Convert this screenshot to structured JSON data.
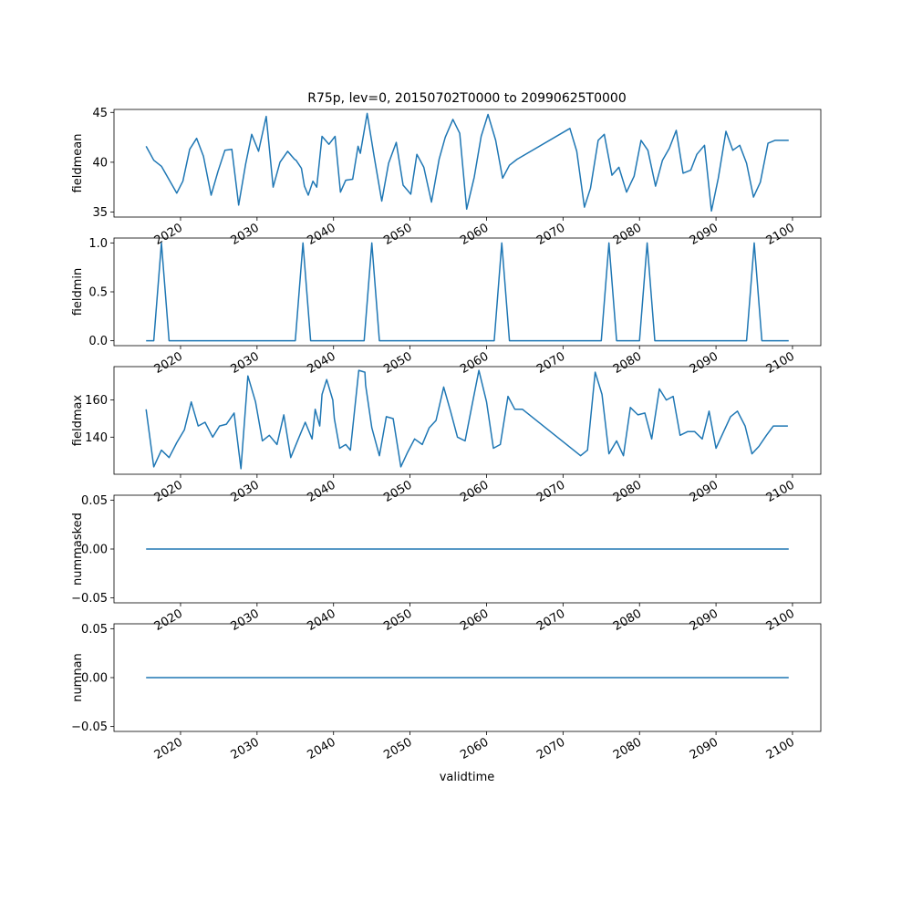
{
  "figure_title": "R75p, lev=0, 20150702T0000 to 20990625T0000",
  "xlabel": "validtime",
  "x_ticks": [
    2020,
    2030,
    2040,
    2050,
    2060,
    2070,
    2080,
    2090,
    2100
  ],
  "line_color": "#1f77b4",
  "chart_data": [
    {
      "type": "line",
      "ylabel": "fieldmean",
      "ylim": [
        34.5,
        45.3
      ],
      "yticks": [
        "35",
        "40",
        "45"
      ],
      "ytick_values": [
        35,
        40,
        45
      ],
      "x": [
        2015.5,
        2016.5,
        2017.5,
        2019.5,
        2020.3,
        2021.2,
        2022.1,
        2023.0,
        2024.0,
        2024.9,
        2025.8,
        2026.7,
        2027.6,
        2028.5,
        2029.3,
        2030.2,
        2031.2,
        2032.1,
        2033.0,
        2034.0,
        2034.9,
        2035.1,
        2035.8,
        2036.2,
        2036.7,
        2037.3,
        2037.8,
        2038.5,
        2039.4,
        2040.2,
        2040.9,
        2041.6,
        2042.5,
        2043.2,
        2043.5,
        2044.4,
        2045.3,
        2046.3,
        2047.2,
        2048.2,
        2049.1,
        2050.1,
        2050.9,
        2051.8,
        2052.8,
        2053.8,
        2054.6,
        2055.6,
        2056.5,
        2057.4,
        2058.4,
        2059.3,
        2060.2,
        2061.2,
        2062.1,
        2063.0,
        2064.0,
        2070.9,
        2071.8,
        2072.8,
        2073.6,
        2074.6,
        2075.4,
        2076.4,
        2077.3,
        2078.3,
        2079.3,
        2080.2,
        2081.1,
        2082.1,
        2083.0,
        2083.9,
        2084.8,
        2085.7,
        2086.7,
        2087.5,
        2088.5,
        2089.4,
        2090.3,
        2091.3,
        2092.2,
        2093.1,
        2094.0,
        2094.9,
        2095.8,
        2096.8,
        2097.7,
        2098.6,
        2099.5
      ],
      "y": [
        41.6,
        40.2,
        39.6,
        36.9,
        38.1,
        41.3,
        42.4,
        40.6,
        36.7,
        39.1,
        41.2,
        41.3,
        35.7,
        39.8,
        42.8,
        41.1,
        44.6,
        37.5,
        40.0,
        41.1,
        40.3,
        40.2,
        39.4,
        37.6,
        36.7,
        38.1,
        37.5,
        42.6,
        41.8,
        42.6,
        37.0,
        38.2,
        38.3,
        41.6,
        40.9,
        44.9,
        40.6,
        36.1,
        39.9,
        42.0,
        37.7,
        36.8,
        40.8,
        39.5,
        36.0,
        40.3,
        42.5,
        44.3,
        42.9,
        35.3,
        38.5,
        42.6,
        44.8,
        42.2,
        38.4,
        39.7,
        40.3,
        43.4,
        41.1,
        35.5,
        37.4,
        42.2,
        42.8,
        38.7,
        39.5,
        37.0,
        38.6,
        42.2,
        41.2,
        37.6,
        40.2,
        41.4,
        43.2,
        38.9,
        39.2,
        40.8,
        41.7,
        35.1,
        38.4,
        43.1,
        41.2,
        41.7,
        39.9,
        36.5,
        38.0,
        41.9,
        42.2,
        42.2,
        42.2
      ]
    },
    {
      "type": "line",
      "ylabel": "fieldmin",
      "ylim": [
        -0.05,
        1.05
      ],
      "yticks": [
        "0.0",
        "0.5",
        "1.0"
      ],
      "ytick_values": [
        0,
        0.5,
        1
      ],
      "x": [
        2015.5,
        2016.5,
        2017.5,
        2018.5,
        2035.0,
        2036.0,
        2037.0,
        2044.0,
        2045.0,
        2046.0,
        2061.0,
        2062.0,
        2063.0,
        2075.0,
        2076.0,
        2077.0,
        2080.0,
        2081.0,
        2082.0,
        2094.0,
        2095.0,
        2096.0,
        2099.5
      ],
      "y": [
        0,
        0,
        1,
        0,
        0,
        1,
        0,
        0,
        1,
        0,
        0,
        1,
        0,
        0,
        1,
        0,
        0,
        1,
        0,
        0,
        1,
        0,
        0
      ]
    },
    {
      "type": "line",
      "ylabel": "fieldmax",
      "ylim": [
        120,
        178
      ],
      "yticks": [
        "140",
        "160"
      ],
      "ytick_values": [
        140,
        160
      ],
      "x": [
        2015.5,
        2016.5,
        2017.5,
        2018.5,
        2019.5,
        2020.5,
        2021.4,
        2022.3,
        2023.2,
        2024.2,
        2025.1,
        2026.0,
        2027.0,
        2027.9,
        2028.8,
        2029.8,
        2030.7,
        2031.6,
        2032.6,
        2033.5,
        2034.4,
        2035.4,
        2036.3,
        2037.2,
        2037.6,
        2038.2,
        2038.5,
        2039.1,
        2039.9,
        2040.1,
        2040.8,
        2041.6,
        2042.2,
        2043.3,
        2044.1,
        2044.2,
        2045.0,
        2046.0,
        2046.9,
        2047.8,
        2048.8,
        2049.7,
        2050.6,
        2051.6,
        2052.5,
        2053.4,
        2054.4,
        2055.3,
        2056.2,
        2057.2,
        2058.1,
        2059.0,
        2060.0,
        2060.9,
        2061.8,
        2062.8,
        2063.7,
        2064.7,
        2072.3,
        2073.2,
        2074.2,
        2075.1,
        2076.0,
        2077.0,
        2077.9,
        2078.8,
        2079.8,
        2080.7,
        2081.6,
        2082.6,
        2083.5,
        2084.4,
        2085.3,
        2086.3,
        2087.2,
        2088.2,
        2089.1,
        2090.0,
        2090.9,
        2091.9,
        2092.8,
        2093.8,
        2094.7,
        2095.6,
        2096.6,
        2097.5,
        2098.4,
        2099.4
      ],
      "y": [
        155,
        124,
        133,
        129,
        137,
        144,
        159,
        146,
        148,
        140,
        146,
        147,
        153,
        123,
        173,
        159,
        138,
        141,
        136,
        152,
        129,
        139,
        148,
        139,
        155,
        146,
        163,
        171,
        160,
        150,
        134,
        136,
        133,
        176,
        175,
        168,
        145,
        130,
        151,
        150,
        124,
        132,
        139,
        136,
        145,
        149,
        167,
        154,
        140,
        138,
        157,
        176,
        159,
        134,
        136,
        162,
        155,
        155,
        130,
        133,
        175,
        163,
        131,
        138,
        130,
        156,
        152,
        153,
        139,
        166,
        160,
        162,
        141,
        143,
        143,
        139,
        154,
        134,
        142,
        151,
        154,
        146,
        131,
        135,
        141,
        146,
        146,
        146
      ]
    },
    {
      "type": "line",
      "ylabel": "nummasked",
      "ylim": [
        -0.055,
        0.055
      ],
      "yticks": [
        "−0.05",
        "0.00",
        "0.05"
      ],
      "ytick_values": [
        -0.05,
        0,
        0.05
      ],
      "x": [
        2015.5,
        2099.5
      ],
      "y": [
        0,
        0
      ]
    },
    {
      "type": "line",
      "ylabel": "numnan",
      "ylim": [
        -0.055,
        0.055
      ],
      "yticks": [
        "−0.05",
        "0.00",
        "0.05"
      ],
      "ytick_values": [
        -0.05,
        0,
        0.05
      ],
      "x": [
        2015.5,
        2099.5
      ],
      "y": [
        0,
        0
      ]
    }
  ]
}
